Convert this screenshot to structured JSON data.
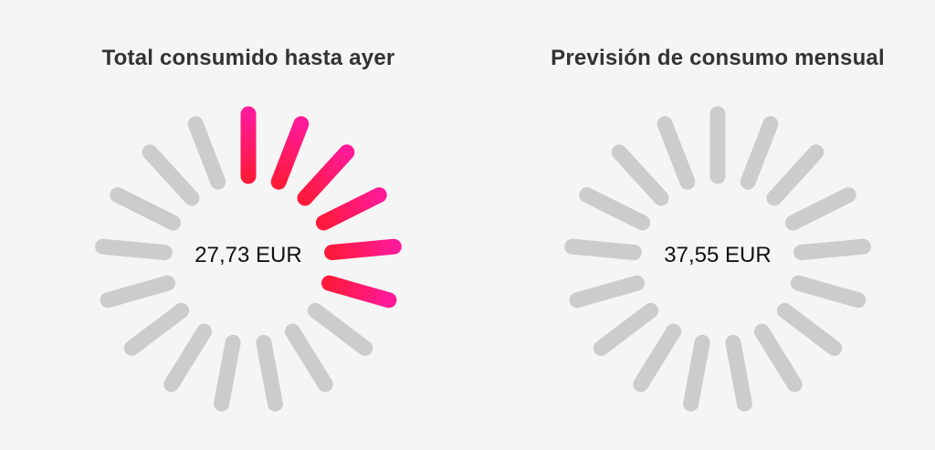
{
  "gauges": [
    {
      "title": "Total consumido hasta ayer",
      "value": "27,73 EUR",
      "segments_total": 17,
      "segments_active": 6,
      "colors": {
        "inactive": "#cccccc",
        "gradient_start": "#ff1a3c",
        "gradient_end": "#ff1aa8"
      }
    },
    {
      "title": "Previsión de consumo mensual",
      "value": "37,55 EUR",
      "segments_total": 17,
      "segments_active": 0,
      "colors": {
        "inactive": "#cccccc",
        "gradient_start": "#ff1a3c",
        "gradient_end": "#ff1aa8"
      }
    }
  ]
}
